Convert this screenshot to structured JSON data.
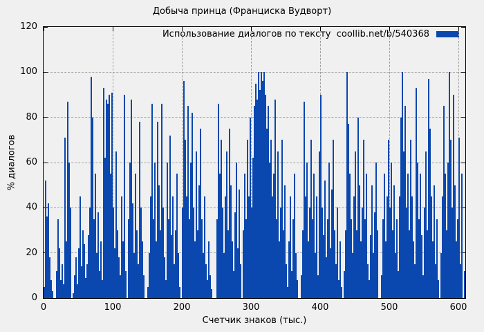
{
  "colors": {
    "bar": "#0a47ae",
    "background": "#f0f0f0",
    "grid": "#9f9f9f",
    "frame": "#000000",
    "text": "#000000"
  },
  "chart_data": {
    "type": "bar",
    "title": "Добыча принца (Франциска Вудворт)",
    "xlabel": "Счетчик знаков (тыс.)",
    "ylabel": "% диалогов",
    "xlim": [
      0,
      610
    ],
    "ylim": [
      0,
      120
    ],
    "xticks": [
      0,
      100,
      200,
      300,
      400,
      500,
      600
    ],
    "yticks": [
      0,
      20,
      40,
      60,
      80,
      100,
      120
    ],
    "grid": true,
    "grid_style": "dashed",
    "legend_position": "top-right",
    "x_start": 0,
    "x_step": 2,
    "series": [
      {
        "name": "Использование диалогов по тексту  coollib.net/b/540368",
        "values": [
          5,
          52,
          36,
          42,
          18,
          8,
          3,
          0,
          0,
          12,
          35,
          22,
          8,
          15,
          6,
          71,
          25,
          87,
          60,
          40,
          0,
          2,
          10,
          18,
          6,
          22,
          45,
          14,
          30,
          24,
          9,
          15,
          28,
          40,
          98,
          80,
          35,
          55,
          20,
          38,
          12,
          25,
          8,
          93,
          62,
          88,
          86,
          90,
          55,
          91,
          40,
          22,
          65,
          30,
          18,
          10,
          45,
          25,
          90,
          12,
          0,
          35,
          60,
          88,
          42,
          20,
          55,
          30,
          15,
          78,
          40,
          25,
          10,
          0,
          0,
          5,
          20,
          45,
          86,
          35,
          60,
          25,
          78,
          50,
          30,
          86,
          40,
          18,
          8,
          60,
          35,
          72,
          28,
          45,
          15,
          30,
          55,
          20,
          5,
          0,
          40,
          96,
          70,
          45,
          85,
          35,
          60,
          82,
          40,
          25,
          65,
          30,
          50,
          75,
          35,
          20,
          45,
          15,
          8,
          25,
          10,
          4,
          0,
          0,
          0,
          35,
          86,
          55,
          70,
          40,
          20,
          45,
          65,
          30,
          75,
          50,
          25,
          12,
          38,
          60,
          22,
          48,
          15,
          0,
          30,
          55,
          35,
          70,
          45,
          80,
          40,
          62,
          85,
          95,
          88,
          100,
          92,
          100,
          96,
          100,
          90,
          75,
          85,
          60,
          70,
          45,
          55,
          88,
          35,
          65,
          25,
          40,
          70,
          30,
          50,
          15,
          5,
          25,
          45,
          12,
          35,
          55,
          20,
          8,
          0,
          0,
          10,
          30,
          87,
          45,
          60,
          25,
          40,
          70,
          35,
          55,
          20,
          45,
          10,
          65,
          90,
          40,
          28,
          52,
          18,
          35,
          60,
          22,
          48,
          70,
          30,
          15,
          40,
          8,
          25,
          5,
          0,
          12,
          30,
          100,
          77,
          55,
          35,
          20,
          45,
          65,
          30,
          80,
          50,
          25,
          40,
          70,
          35,
          55,
          15,
          8,
          28,
          50,
          20,
          38,
          60,
          30,
          0,
          0,
          10,
          35,
          55,
          25,
          45,
          70,
          40,
          60,
          30,
          50,
          20,
          35,
          12,
          45,
          80,
          100,
          65,
          85,
          40,
          55,
          30,
          70,
          45,
          25,
          15,
          93,
          60,
          35,
          55,
          28,
          10,
          40,
          65,
          30,
          97,
          75,
          45,
          25,
          50,
          15,
          35,
          8,
          0,
          20,
          45,
          85,
          55,
          30,
          60,
          100,
          70,
          40,
          90,
          50,
          25,
          35,
          71,
          15,
          55,
          0,
          12
        ]
      }
    ]
  }
}
